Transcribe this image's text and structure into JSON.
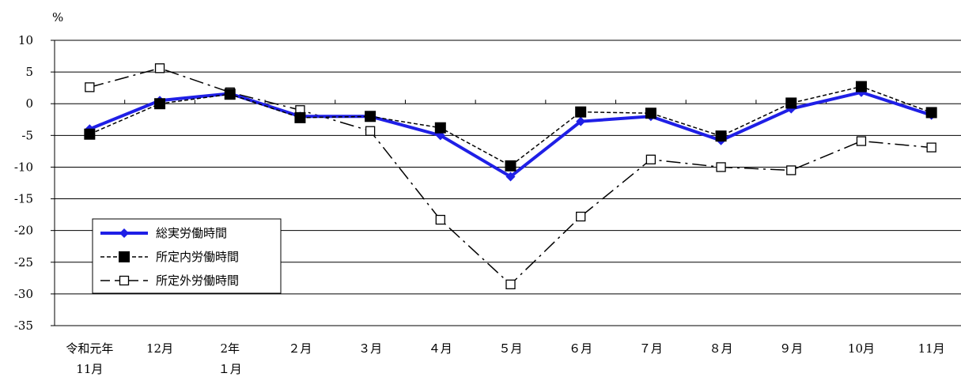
{
  "chart_data": {
    "type": "line",
    "unit_label": "%",
    "ylim": [
      -35,
      10
    ],
    "yticks": [
      10,
      5,
      0,
      -5,
      -10,
      -15,
      -20,
      -25,
      -30,
      -35
    ],
    "grid": true,
    "legend_position": "lower-left",
    "categories": [
      [
        "令和元年",
        "11月"
      ],
      [
        "12月"
      ],
      [
        "2年",
        "１月"
      ],
      [
        "２月"
      ],
      [
        "３月"
      ],
      [
        "４月"
      ],
      [
        "５月"
      ],
      [
        "６月"
      ],
      [
        "７月"
      ],
      [
        "８月"
      ],
      [
        "９月"
      ],
      [
        "10月"
      ],
      [
        "11月"
      ]
    ],
    "series": [
      {
        "name": "総実労働時間",
        "color": "#1f1fe6",
        "marker": "diamond",
        "line": "solid",
        "values": [
          -4.0,
          0.5,
          1.6,
          -2.0,
          -2.0,
          -5.0,
          -11.5,
          -2.8,
          -2.0,
          -5.8,
          -0.8,
          1.8,
          -1.8
        ]
      },
      {
        "name": "所定内労働時間",
        "color": "#000000",
        "marker": "filled-square",
        "line": "dashed",
        "values": [
          -4.8,
          0.0,
          1.5,
          -2.2,
          -2.0,
          -3.8,
          -9.8,
          -1.3,
          -1.5,
          -5.1,
          0.1,
          2.7,
          -1.4
        ]
      },
      {
        "name": "所定外労働時間",
        "color": "#000000",
        "marker": "open-square",
        "line": "dash-dot",
        "values": [
          2.6,
          5.6,
          1.8,
          -1.0,
          -4.3,
          -18.3,
          -28.5,
          -17.8,
          -8.8,
          -10.0,
          -10.5,
          -5.9,
          -6.9
        ]
      }
    ]
  }
}
